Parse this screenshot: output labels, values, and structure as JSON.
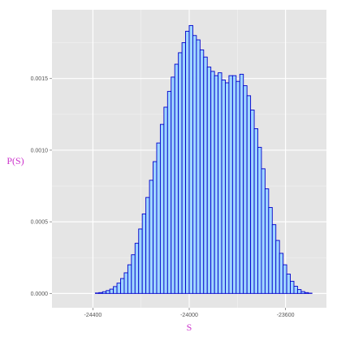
{
  "chart_data": {
    "type": "histogram",
    "xlabel": "S",
    "ylabel": "P(S)",
    "xlim": [
      -24570,
      -23430
    ],
    "ylim": [
      -0.0001,
      0.00198
    ],
    "x_ticks": [
      -24400,
      -24000,
      -23600
    ],
    "x_tick_labels": [
      "-24400",
      "-24000",
      "-23600"
    ],
    "x_minor_ticks": [
      -24200,
      -23800
    ],
    "y_ticks": [
      0,
      0.0005,
      0.001,
      0.0015
    ],
    "y_tick_labels": [
      "0.0000",
      "0.0005",
      "0.0010",
      "0.0015"
    ],
    "y_minor_ticks": [
      0.00025,
      0.00075,
      0.00125,
      0.00175
    ],
    "grid": true,
    "bin_edges_start": -24540,
    "bin_width": 15,
    "densities": [
      0.0,
      0.0,
      0.0,
      0.0,
      0.0,
      0.0,
      0.0,
      0.0,
      0.0,
      0.0,
      3e-06,
      6e-06,
      1.2e-05,
      2e-05,
      3e-05,
      4.8e-05,
      7.2e-05,
      0.000104,
      0.000144,
      0.0002,
      0.00027,
      0.00035,
      0.00045,
      0.000555,
      0.00067,
      0.00079,
      0.00092,
      0.00105,
      0.00118,
      0.0013,
      0.00141,
      0.00151,
      0.0016,
      0.00168,
      0.00175,
      0.00183,
      0.00187,
      0.0018,
      0.00177,
      0.0017,
      0.00165,
      0.00158,
      0.00155,
      0.00152,
      0.00154,
      0.00149,
      0.00147,
      0.00152,
      0.00152,
      0.00148,
      0.00153,
      0.00145,
      0.00138,
      0.00128,
      0.00115,
      0.00102,
      0.00087,
      0.00073,
      0.0006,
      0.00048,
      0.00037,
      0.00028,
      0.0002,
      0.000135,
      8.5e-05,
      5e-05,
      2.7e-05,
      1.3e-05,
      6e-06,
      2e-06,
      0.0,
      0.0,
      0.0,
      0.0,
      0.0,
      0.0,
      0.0
    ]
  },
  "colors": {
    "panel_background": "#e5e5e5",
    "grid_major": "#ffffff",
    "grid_minor": "#f2f2f2",
    "bar_fill": "#9fd6ff",
    "bar_outline": "#0000cc",
    "axis_title": "#cc33cc",
    "tick_label": "#555555"
  }
}
